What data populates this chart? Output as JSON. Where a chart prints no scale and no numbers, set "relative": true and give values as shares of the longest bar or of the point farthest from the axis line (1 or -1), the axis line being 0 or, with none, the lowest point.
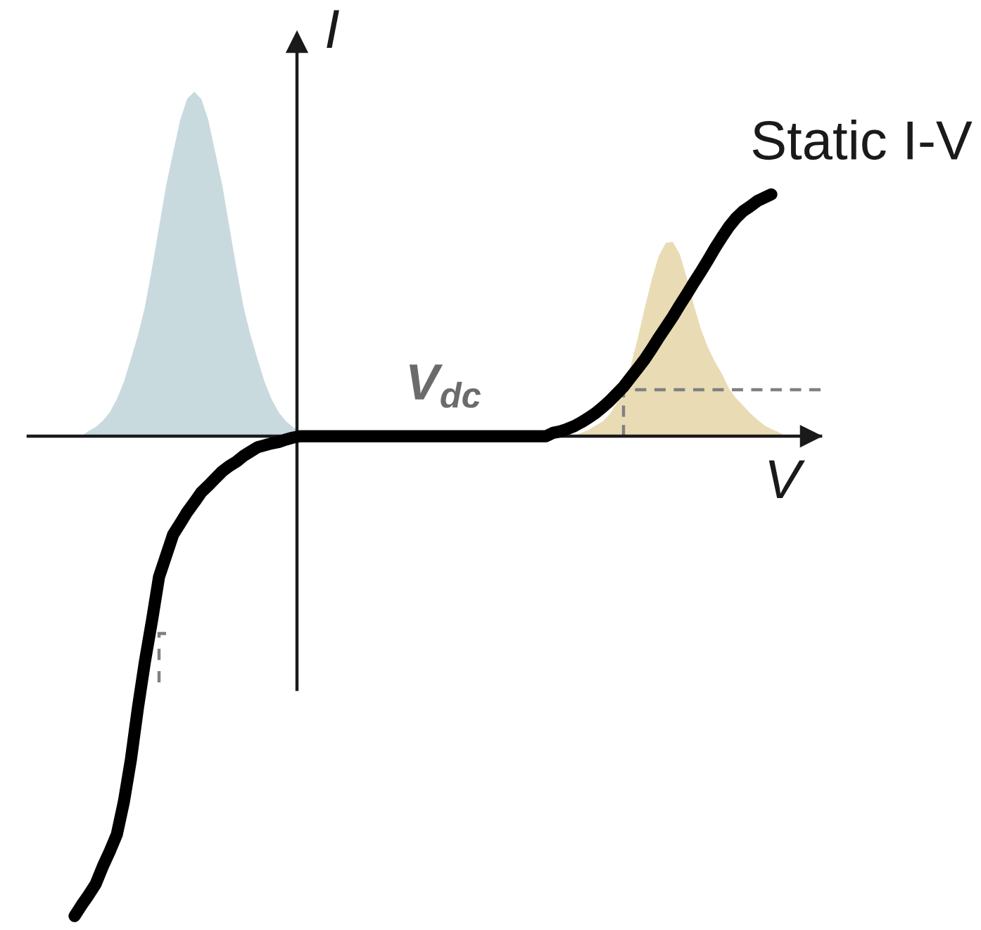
{
  "chart_data": {
    "type": "line",
    "relative": true,
    "xlabel": "V",
    "ylabel": "I",
    "annotations": [
      "V$_{dc}$"
    ],
    "categories": [
      null,
      null,
      null,
      null,
      null,
      null,
      null,
      null,
      null,
      null,
      null,
      null,
      null,
      null,
      null,
      null,
      null,
      null,
      null,
      null,
      null,
      null,
      null,
      null,
      null,
      null,
      null,
      null,
      null,
      null,
      null,
      null,
      null,
      null,
      null,
      null,
      null,
      null,
      null,
      null,
      null,
      null,
      null,
      null,
      null,
      null,
      null,
      null,
      null,
      null,
      null,
      null,
      null,
      null,
      null,
      null,
      null,
      null,
      null,
      null,
      null,
      null,
      null,
      null,
      null,
      null,
      null,
      null,
      null,
      null,
      null,
      null,
      null,
      null,
      null,
      null,
      null,
      null,
      null,
      null,
      null,
      null,
      null,
      null,
      null,
      null,
      null,
      null,
      null,
      null,
      null,
      null,
      null,
      null,
      null,
      null,
      null,
      null,
      null,
      null,
      null,
      null,
      null,
      null,
      null,
      null,
      null,
      null,
      null
    ],
    "series": [
      {
        "name": "Static I-V",
        "color": "#000000",
        "line_style": "solid",
        "values": [
          null,
          null,
          -1.0,
          -0.977,
          -0.956,
          -0.933,
          -0.897,
          -0.865,
          -0.83,
          -0.762,
          -0.674,
          -0.566,
          -0.469,
          -0.384,
          -0.293,
          -0.249,
          -0.205,
          -0.182,
          -0.158,
          -0.138,
          -0.117,
          -0.103,
          -0.088,
          -0.073,
          -0.062,
          -0.053,
          -0.041,
          -0.032,
          -0.023,
          -0.019,
          -0.015,
          -0.012,
          -0.007,
          -0.003,
          0,
          0,
          0,
          0,
          0,
          0,
          0,
          0,
          0,
          0,
          0,
          0,
          0,
          0,
          0,
          0,
          0,
          0,
          0,
          0,
          0,
          0,
          0,
          0,
          0,
          0,
          0,
          0,
          0,
          0,
          0,
          0,
          0,
          0,
          0,
          0,
          0.007,
          0.01,
          0.015,
          0.021,
          0.029,
          0.038,
          0.048,
          0.06,
          0.073,
          0.088,
          0.103,
          0.122,
          0.141,
          0.16,
          0.182,
          0.205,
          0.227,
          0.249,
          0.273,
          0.296,
          0.32,
          0.343,
          0.367,
          0.392,
          0.415,
          0.437,
          0.455,
          0.469,
          0.479,
          0.49,
          0.497,
          0.504,
          null,
          null,
          null,
          null,
          null,
          null,
          null
        ]
      },
      {
        "type": "area",
        "color": "#c9dadf",
        "values": [
          null,
          null,
          null,
          0,
          0.011,
          0.019,
          0.032,
          0.05,
          0.077,
          0.113,
          0.161,
          0.21,
          0.27,
          0.35,
          0.436,
          0.522,
          0.591,
          0.659,
          0.703,
          0.718,
          0.703,
          0.659,
          0.591,
          0.522,
          0.436,
          0.35,
          0.27,
          0.21,
          0.161,
          0.113,
          0.077,
          0.05,
          0.032,
          0.019,
          0.011,
          null,
          null,
          null,
          null,
          null,
          null,
          null,
          null,
          null,
          null,
          null,
          null,
          null,
          null,
          null,
          null,
          null,
          null,
          null,
          null,
          null,
          null,
          null,
          null,
          null,
          null,
          null,
          null,
          null,
          null,
          null,
          null,
          null,
          null,
          null,
          null,
          null,
          null,
          null,
          null,
          null,
          null,
          null,
          null,
          null,
          null,
          null,
          null,
          null,
          null,
          null,
          null,
          null,
          null,
          null,
          null,
          null,
          null,
          null,
          null,
          null,
          null,
          null,
          null,
          null,
          null,
          null,
          null,
          null,
          null,
          null,
          null,
          null,
          null
        ]
      },
      {
        "type": "area",
        "color": "#e9dcb5",
        "values": [
          null,
          null,
          null,
          null,
          null,
          null,
          null,
          null,
          null,
          null,
          null,
          null,
          null,
          null,
          null,
          null,
          null,
          null,
          null,
          null,
          null,
          null,
          null,
          null,
          null,
          null,
          null,
          null,
          null,
          null,
          null,
          null,
          null,
          null,
          null,
          null,
          null,
          null,
          null,
          null,
          null,
          null,
          null,
          null,
          null,
          null,
          null,
          null,
          null,
          null,
          null,
          null,
          null,
          null,
          null,
          null,
          null,
          null,
          null,
          null,
          null,
          null,
          null,
          null,
          null,
          null,
          null,
          null,
          null,
          null,
          null,
          null,
          null,
          0,
          0.007,
          0.013,
          0.022,
          0.03,
          0.045,
          0.067,
          0.097,
          0.145,
          0.203,
          0.266,
          0.326,
          0.375,
          0.403,
          0.405,
          0.379,
          0.33,
          0.273,
          0.223,
          0.185,
          0.155,
          0.13,
          0.099,
          0.079,
          0.064,
          0.048,
          0.035,
          0.023,
          0.015,
          0.009,
          0,
          null,
          null,
          null,
          null,
          null
        ]
      },
      {
        "type": "step",
        "color": "#808080",
        "line_style": "dashed",
        "values": [
          null,
          null,
          null,
          null,
          null,
          null,
          null,
          null,
          null,
          null,
          null,
          null,
          null,
          null,
          null,
          null,
          null,
          null,
          null,
          null,
          null,
          null,
          null,
          null,
          null,
          null,
          null,
          null,
          null,
          null,
          null,
          null,
          null,
          null,
          null,
          null,
          null,
          null,
          null,
          null,
          null,
          null,
          null,
          null,
          null,
          null,
          null,
          null,
          null,
          null,
          null,
          null,
          null,
          null,
          null,
          null,
          null,
          null,
          null,
          null,
          null,
          null,
          null,
          null,
          null,
          null,
          null,
          null,
          null,
          null,
          null,
          null,
          null,
          null,
          null,
          null,
          null,
          null,
          null,
          null,
          0,
          0.097,
          0.097,
          0.097,
          0.097,
          0.097,
          0.097,
          0.097,
          0.097,
          0.097,
          0.097,
          0.097,
          0.097,
          0.097,
          0.097,
          0.097,
          0.097,
          0.097,
          0.097,
          0.097,
          0.097,
          0.097,
          0.097,
          0.097,
          0.097,
          0.097,
          0.097,
          0.097,
          0.097
        ]
      },
      {
        "type": "step",
        "color": "#808080",
        "line_style": "dashed",
        "values": [
          null,
          null,
          null,
          null,
          null,
          null,
          null,
          null,
          null,
          null,
          null,
          null,
          null,
          null,
          -0.513,
          -0.411,
          null,
          null,
          null,
          null,
          null,
          null,
          null,
          null,
          null,
          null,
          null,
          null,
          null,
          null,
          null,
          null,
          null,
          null,
          null,
          null,
          null,
          null,
          null,
          null,
          null,
          null,
          null,
          null,
          null,
          null,
          null,
          null,
          null,
          null,
          null,
          null,
          null,
          null,
          null,
          null,
          null,
          null,
          null,
          null,
          null,
          null,
          null,
          null,
          null,
          null,
          null,
          null,
          null,
          null,
          null,
          null,
          null,
          null,
          null,
          null,
          null,
          null,
          null,
          null,
          null,
          null,
          null,
          null,
          null,
          null,
          null,
          null,
          null,
          null,
          null,
          null,
          null,
          null,
          null,
          null,
          null,
          null,
          null,
          null,
          null,
          null,
          null,
          null,
          null,
          null,
          null,
          null,
          null
        ]
      }
    ]
  }
}
